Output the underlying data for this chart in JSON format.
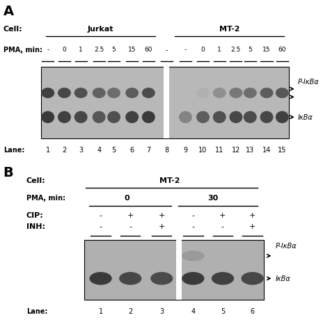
{
  "panel_A": {
    "label": "A",
    "cell_label": "Cell:",
    "jurkat_label": "Jurkat",
    "mt2_label_A": "MT-2",
    "pma_label": "PMA, min:",
    "pma_jurkat": [
      "-",
      "0",
      "1",
      "2.5",
      "5",
      "15",
      "60"
    ],
    "pma_sep": "-",
    "pma_mt2": [
      "-",
      "0",
      "1",
      "2.5",
      "5",
      "15",
      "60"
    ],
    "lane_label": "Lane:",
    "lanes_A": [
      "1",
      "2",
      "3",
      "4",
      "5",
      "6",
      "7",
      "8",
      "9",
      "10",
      "11",
      "12",
      "13",
      "14",
      "15"
    ],
    "band_upper_label": "P-IκBα",
    "band_lower_label": "IκBα",
    "jurkat_upper_intensity": [
      0.85,
      0.82,
      0.78,
      0.7,
      0.65,
      0.72,
      0.8
    ],
    "jurkat_lower_intensity": [
      0.88,
      0.85,
      0.82,
      0.75,
      0.78,
      0.85,
      0.88
    ],
    "mt2_upper_intensity": [
      0.05,
      0.35,
      0.5,
      0.6,
      0.65,
      0.72,
      0.75
    ],
    "mt2_lower_intensity": [
      0.55,
      0.72,
      0.78,
      0.82,
      0.8,
      0.82,
      0.85
    ]
  },
  "panel_B": {
    "label": "B",
    "cell_label": "Cell:",
    "mt2_label_B": "MT-2",
    "pma_label": "PMA, min:",
    "pma_0": "0",
    "pma_30": "30",
    "cip_label": "CIP:",
    "inh_label": "INH:",
    "cip_vals": [
      "-",
      "+",
      "+",
      "-",
      "+",
      "+"
    ],
    "inh_vals": [
      "-",
      "-",
      "+",
      "-",
      "-",
      "+"
    ],
    "lane_label": "Lane:",
    "lanes_B": [
      "1",
      "2",
      "3",
      "4",
      "5",
      "6"
    ],
    "band_upper_label": "P-IκBα",
    "band_lower_label": "IκBα",
    "lower_intensity": [
      0.88,
      0.82,
      0.8,
      0.88,
      0.85,
      0.82
    ],
    "upper_intensity": [
      0.05,
      0.05,
      0.05,
      0.45,
      0.05,
      0.05
    ]
  }
}
